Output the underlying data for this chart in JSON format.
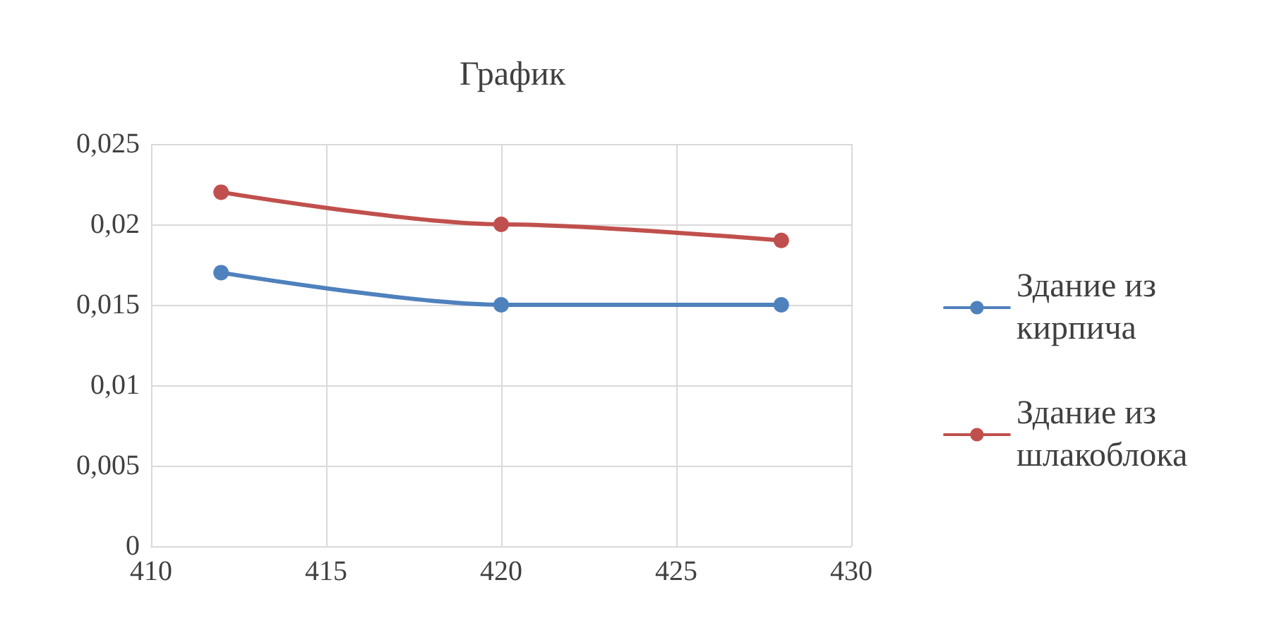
{
  "chart_data": {
    "type": "line",
    "title": "График",
    "x": [
      412,
      420,
      428
    ],
    "series": [
      {
        "name": "Здание из кирпича",
        "color": "#4f81bd",
        "values": [
          0.017,
          0.015,
          0.015
        ]
      },
      {
        "name": "Здание из шлакоблока",
        "color": "#c0504d",
        "values": [
          0.022,
          0.02,
          0.019
        ]
      }
    ],
    "xlim": [
      410,
      430
    ],
    "xticks": [
      410,
      415,
      420,
      425,
      430
    ],
    "ylim": [
      0,
      0.025
    ],
    "yticks": [
      {
        "value": 0,
        "label": "0"
      },
      {
        "value": 0.005,
        "label": "0,005"
      },
      {
        "value": 0.01,
        "label": "0,01"
      },
      {
        "value": 0.015,
        "label": "0,015"
      },
      {
        "value": 0.02,
        "label": "0,02"
      },
      {
        "value": 0.025,
        "label": "0,025"
      }
    ],
    "grid": true,
    "legend": "right",
    "marker": "circle",
    "line_style": "solid"
  }
}
